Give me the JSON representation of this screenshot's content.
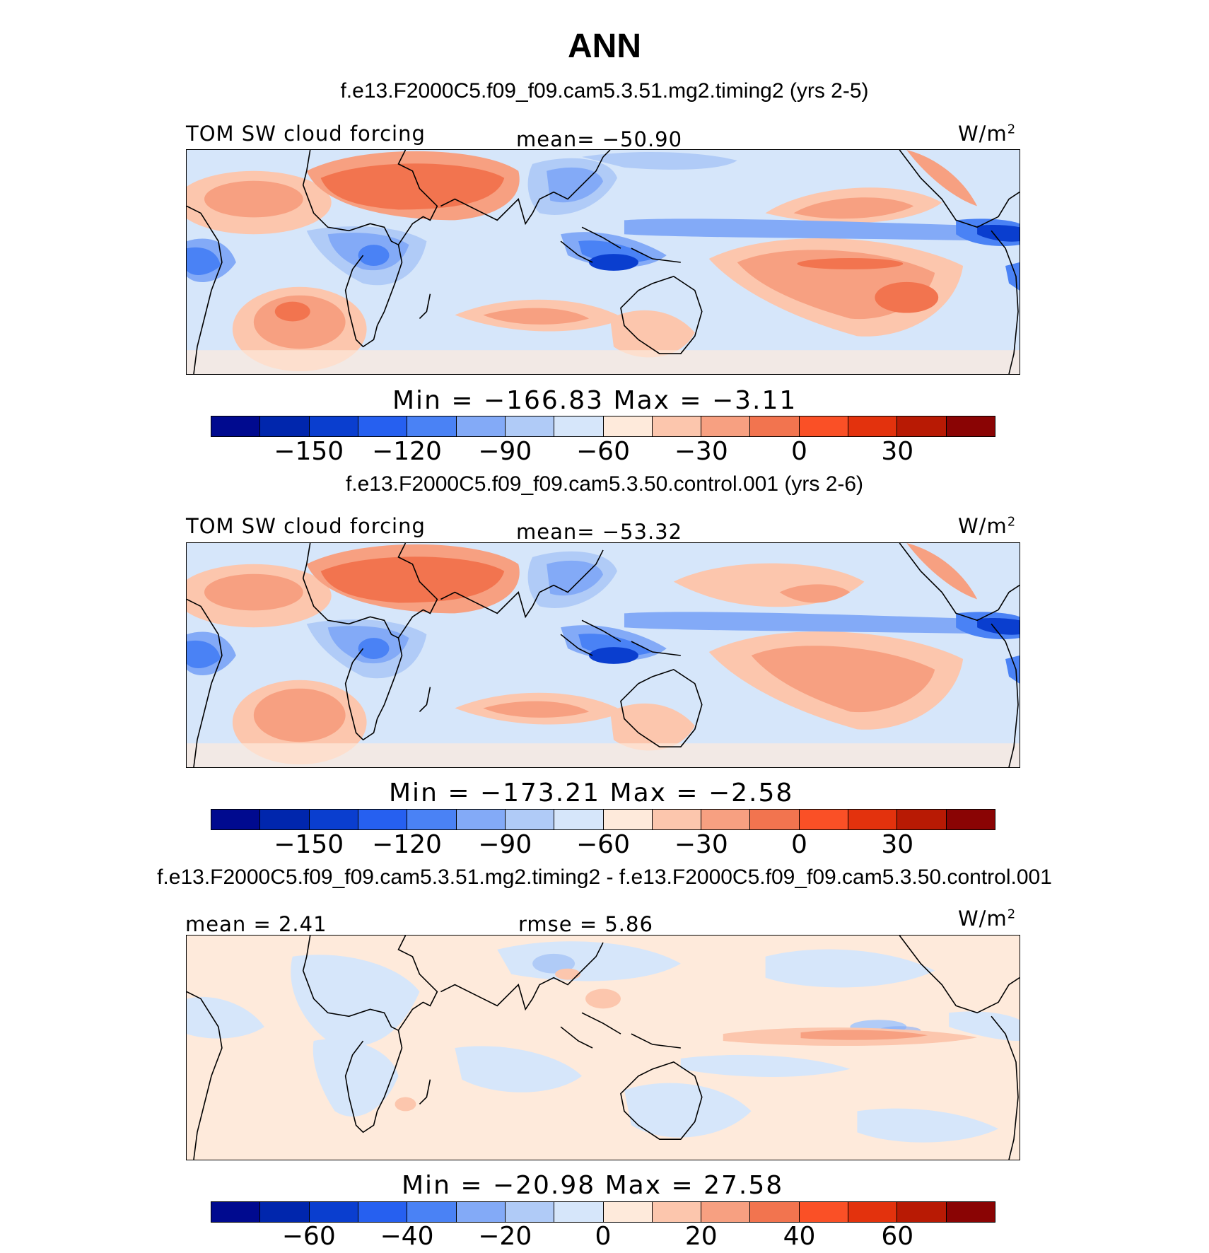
{
  "figure_title": "ANN",
  "colors": [
    "#000a8f",
    "#0026ad",
    "#0a3ecf",
    "#2660f0",
    "#4a82f5",
    "#83aaf7",
    "#b0cbf7",
    "#d6e6fa",
    "#feeadb",
    "#fcc6ad",
    "#f7a081",
    "#f2744f",
    "#fa5026",
    "#e3320d",
    "#b81a04",
    "#8a0404"
  ],
  "panels": [
    {
      "case_label": "f.e13.F2000C5.f09_f09.cam5.3.51.mg2.timing2 (yrs 2-5)",
      "variable": "TOM SW cloud forcing",
      "center_stat": "mean= −50.90",
      "units": "W/m",
      "units_sup": "2",
      "minmax": "Min  =  −166.83  Max  =    −3.11",
      "tick_labels": [
        "−150",
        "−120",
        "−90",
        "−60",
        "−30",
        "0",
        "30"
      ]
    },
    {
      "case_label": "f.e13.F2000C5.f09_f09.cam5.3.50.control.001 (yrs 2-6)",
      "variable": "TOM SW cloud forcing",
      "center_stat": "mean= −53.32",
      "units": "W/m",
      "units_sup": "2",
      "minmax": "Min  =  −173.21  Max  =    −2.58",
      "tick_labels": [
        "−150",
        "−120",
        "−90",
        "−60",
        "−30",
        "0",
        "30"
      ]
    },
    {
      "case_label": "f.e13.F2000C5.f09_f09.cam5.3.51.mg2.timing2 - f.e13.F2000C5.f09_f09.cam5.3.50.control.001",
      "left_stat": "mean  =    2.41",
      "center_stat": "rmse  =    5.86",
      "units": "W/m",
      "units_sup": "2",
      "minmax": "Min  =  −20.98  Max  =    27.58",
      "tick_labels": [
        "−60",
        "−40",
        "−20",
        "0",
        "20",
        "40",
        "60"
      ]
    }
  ],
  "chart_data": [
    {
      "type": "heatmap",
      "title": "f.e13.F2000C5.f09_f09.cam5.3.51.mg2.timing2 (yrs 2-5)",
      "variable": "TOM SW cloud forcing",
      "units": "W/m2",
      "mean": -50.9,
      "min": -166.83,
      "max": -3.11,
      "colorbar_levels": [
        -165,
        -150,
        -135,
        -120,
        -105,
        -90,
        -75,
        -60,
        -45,
        -30,
        -15,
        0,
        15,
        30,
        45
      ],
      "colorbar_labels": [
        -150,
        -120,
        -90,
        -60,
        -30,
        0,
        30
      ]
    },
    {
      "type": "heatmap",
      "title": "f.e13.F2000C5.f09_f09.cam5.3.50.control.001 (yrs 2-6)",
      "variable": "TOM SW cloud forcing",
      "units": "W/m2",
      "mean": -53.32,
      "min": -173.21,
      "max": -2.58,
      "colorbar_levels": [
        -165,
        -150,
        -135,
        -120,
        -105,
        -90,
        -75,
        -60,
        -45,
        -30,
        -15,
        0,
        15,
        30,
        45
      ],
      "colorbar_labels": [
        -150,
        -120,
        -90,
        -60,
        -30,
        0,
        30
      ]
    },
    {
      "type": "heatmap",
      "title": "f.e13.F2000C5.f09_f09.cam5.3.51.mg2.timing2 - f.e13.F2000C5.f09_f09.cam5.3.50.control.001",
      "units": "W/m2",
      "mean": 2.41,
      "rmse": 5.86,
      "min": -20.98,
      "max": 27.58,
      "colorbar_levels": [
        -70,
        -60,
        -50,
        -40,
        -30,
        -20,
        -10,
        0,
        10,
        20,
        30,
        40,
        50,
        60,
        70
      ],
      "colorbar_labels": [
        -60,
        -40,
        -20,
        0,
        20,
        40,
        60
      ]
    }
  ]
}
